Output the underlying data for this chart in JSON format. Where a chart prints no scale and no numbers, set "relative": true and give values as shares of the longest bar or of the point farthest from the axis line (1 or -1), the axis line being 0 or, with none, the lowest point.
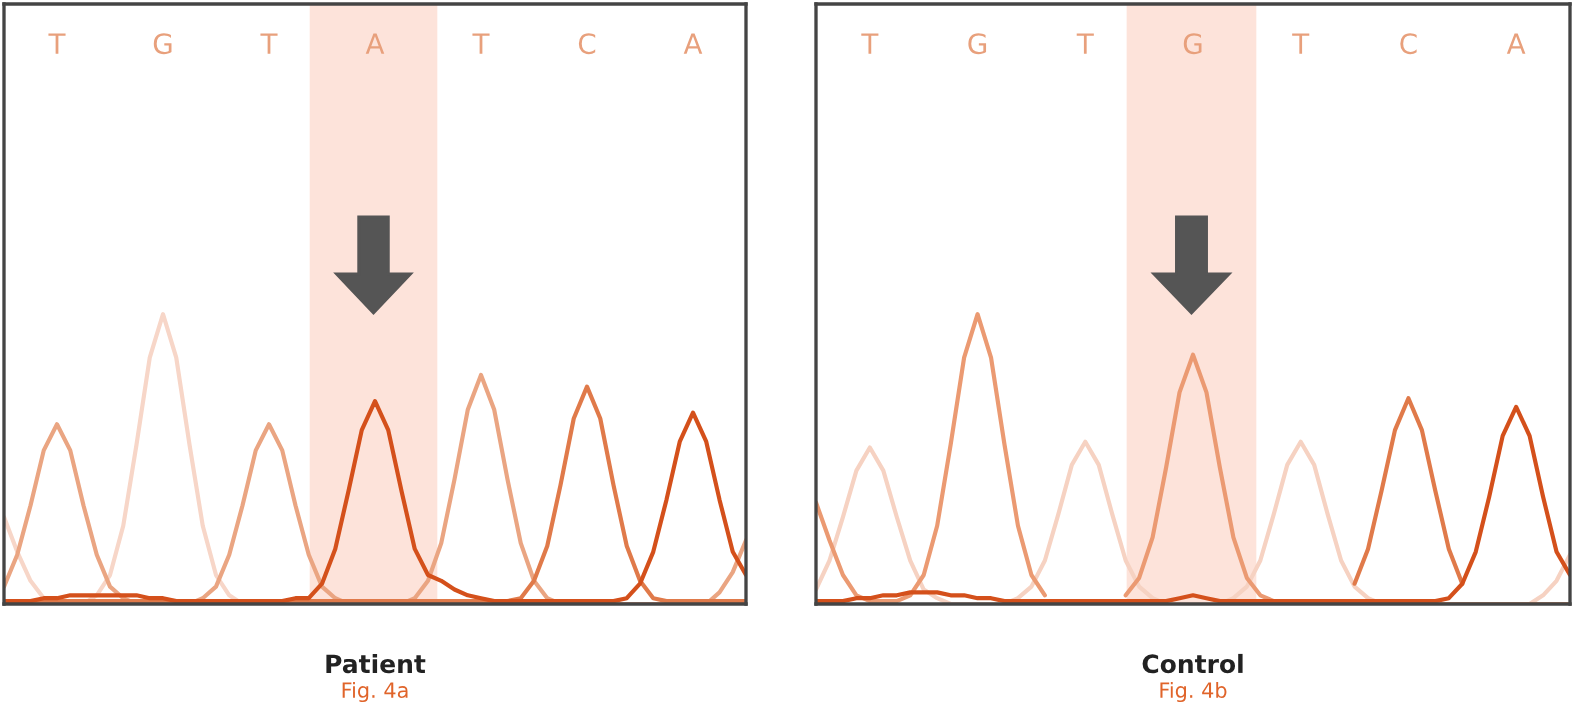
{
  "chart_data": [
    {
      "type": "line",
      "relative": true,
      "xlabel": "Patient",
      "annotations": [
        "Fig. 4a"
      ],
      "categories": [
        null,
        null,
        null,
        null,
        "T",
        null,
        null,
        null,
        null,
        null,
        null,
        null,
        "G",
        null,
        null,
        null,
        null,
        null,
        null,
        null,
        "T",
        null,
        null,
        null,
        null,
        null,
        null,
        null,
        "A",
        null,
        null,
        null,
        null,
        null,
        null,
        null,
        "T",
        null,
        null,
        null,
        null,
        null,
        null,
        null,
        "C",
        null,
        null,
        null,
        null,
        null,
        null,
        null,
        "A",
        null,
        null,
        null,
        null
      ],
      "series": [
        {
          "color": "#f7d6c8",
          "values": [
            0.3,
            0.18,
            0.08,
            0.02,
            0,
            0,
            0,
            0.03,
            0.1,
            0.27,
            0.55,
            0.85,
            1,
            0.85,
            0.55,
            0.27,
            0.1,
            0.03,
            0,
            0,
            0,
            0,
            0,
            0,
            0,
            0,
            0,
            0,
            0,
            0,
            0,
            0,
            0,
            0,
            0,
            0,
            0,
            0,
            0,
            0,
            0,
            0,
            0,
            0,
            0,
            0,
            0,
            0,
            0,
            0,
            0,
            0,
            0,
            0,
            0,
            0,
            0
          ]
        },
        {
          "color": "#eaa582",
          "values": [
            0.06,
            0.17,
            0.34,
            0.53,
            0.62,
            0.53,
            0.34,
            0.17,
            0.06,
            0.02,
            0,
            0,
            0,
            0,
            0,
            0.02,
            0.06,
            0.17,
            0.34,
            0.53,
            0.62,
            0.53,
            0.34,
            0.17,
            0.06,
            0.02,
            0,
            0,
            0,
            0,
            0,
            0.02,
            0.08,
            0.21,
            0.43,
            0.67,
            0.79,
            0.67,
            0.43,
            0.21,
            0.08,
            0.02,
            0,
            0,
            0,
            0,
            0,
            0,
            0,
            0,
            0,
            0,
            0,
            0,
            0.04,
            0.11,
            0.22
          ]
        },
        {
          "color": "#e07a4a",
          "values": [
            0.01,
            0.01,
            0.01,
            0.01,
            0.01,
            0.01,
            0.01,
            0.01,
            0.01,
            0.01,
            0.01,
            0.01,
            0.01,
            0.01,
            0.01,
            0.01,
            0.01,
            0.01,
            0.01,
            0.01,
            0.01,
            0.01,
            0.01,
            0.01,
            0.01,
            0.01,
            0.01,
            0.01,
            0.01,
            0.01,
            0.01,
            0.01,
            0.01,
            0.01,
            0.01,
            0.01,
            0.01,
            0.01,
            0.01,
            0.02,
            0.08,
            0.2,
            0.41,
            0.64,
            0.75,
            0.64,
            0.41,
            0.2,
            0.08,
            0.02,
            0.01,
            0.01,
            0.01,
            0.01,
            0.01,
            0.01,
            0.01
          ]
        },
        {
          "color": "#d4501b",
          "values": [
            0.01,
            0.01,
            0.01,
            0.02,
            0.02,
            0.03,
            0.03,
            0.03,
            0.03,
            0.03,
            0.03,
            0.02,
            0.02,
            0.01,
            0.01,
            0.01,
            0.01,
            0.01,
            0.01,
            0.01,
            0.01,
            0.01,
            0.02,
            0.02,
            0.07,
            0.19,
            0.39,
            0.6,
            0.7,
            0.6,
            0.39,
            0.19,
            0.1,
            0.08,
            0.05,
            0.03,
            0.02,
            0.01,
            0.01,
            0.01,
            0.01,
            0.01,
            0.01,
            0.01,
            0.01,
            0.01,
            0.01,
            0.02,
            0.07,
            0.18,
            0.36,
            0.56,
            0.66,
            0.56,
            0.36,
            0.18,
            0.1
          ]
        }
      ]
    },
    {
      "type": "line",
      "relative": true,
      "xlabel": "Control",
      "annotations": [
        "Fig. 4b"
      ],
      "categories": [
        null,
        null,
        null,
        null,
        "T",
        null,
        null,
        null,
        null,
        null,
        null,
        null,
        "G",
        null,
        null,
        null,
        null,
        null,
        null,
        null,
        "T",
        null,
        null,
        null,
        null,
        null,
        null,
        null,
        "G",
        null,
        null,
        null,
        null,
        null,
        null,
        null,
        "T",
        null,
        null,
        null,
        null,
        null,
        null,
        null,
        "C",
        null,
        null,
        null,
        null,
        null,
        null,
        null,
        "A",
        null,
        null,
        null,
        null
      ],
      "series": [
        {
          "color": "#f6d2c2",
          "values": [
            0.05,
            0.15,
            0.3,
            0.46,
            0.54,
            0.46,
            0.3,
            0.15,
            0.05,
            0.02,
            0,
            0,
            0,
            0,
            0,
            0.02,
            0.06,
            0.15,
            0.31,
            0.48,
            0.56,
            0.48,
            0.31,
            0.15,
            0.06,
            0.02,
            0,
            0,
            0,
            0,
            0,
            0.02,
            0.06,
            0.15,
            0.31,
            0.48,
            0.56,
            0.48,
            0.31,
            0.15,
            0.06,
            0.02,
            0,
            0,
            0,
            0,
            0,
            0,
            0,
            0,
            0,
            0,
            0,
            0,
            0.03,
            0.08,
            0.17
          ]
        },
        {
          "color": "#eb9a72",
          "values": [
            0.35,
            0.22,
            0.1,
            0.03,
            0.01,
            0.01,
            0.01,
            0.03,
            0.1,
            0.27,
            0.55,
            0.85,
            1,
            0.85,
            0.55,
            0.27,
            0.1,
            0.03,
            null,
            null,
            null,
            null,
            null,
            0.03,
            0.09,
            0.23,
            0.47,
            0.73,
            0.86,
            0.73,
            0.47,
            0.23,
            0.09,
            0.03,
            0.01,
            0,
            0,
            0,
            0,
            0,
            0,
            0,
            0,
            0,
            0,
            0,
            0,
            0,
            0,
            0,
            0,
            0,
            0,
            0,
            0,
            0,
            0
          ]
        },
        {
          "color": "#e07a4a",
          "values": [
            null,
            null,
            null,
            null,
            null,
            null,
            null,
            null,
            null,
            null,
            null,
            null,
            null,
            null,
            null,
            null,
            null,
            null,
            null,
            null,
            null,
            null,
            null,
            null,
            null,
            null,
            null,
            null,
            null,
            null,
            null,
            null,
            null,
            null,
            null,
            null,
            null,
            null,
            null,
            null,
            0.07,
            0.19,
            0.39,
            0.6,
            0.71,
            0.6,
            0.39,
            0.19,
            0.07,
            null,
            null,
            null,
            null,
            null,
            null,
            null,
            null
          ]
        },
        {
          "color": "#d4501b",
          "values": [
            0.01,
            0.01,
            0.01,
            0.02,
            0.02,
            0.03,
            0.03,
            0.04,
            0.04,
            0.04,
            0.03,
            0.03,
            0.02,
            0.02,
            0.01,
            0.01,
            0.01,
            0.01,
            0.01,
            0.01,
            0.01,
            0.01,
            0.01,
            0.01,
            0.01,
            0.01,
            0.01,
            0.02,
            0.03,
            0.02,
            0.01,
            0.01,
            0.01,
            0.01,
            0.01,
            0.01,
            0.01,
            0.01,
            0.01,
            0.01,
            0.01,
            0.01,
            0.01,
            0.01,
            0.01,
            0.01,
            0.01,
            0.02,
            0.07,
            0.18,
            0.37,
            0.58,
            0.68,
            0.58,
            0.37,
            0.18,
            0.1
          ]
        }
      ]
    }
  ]
}
